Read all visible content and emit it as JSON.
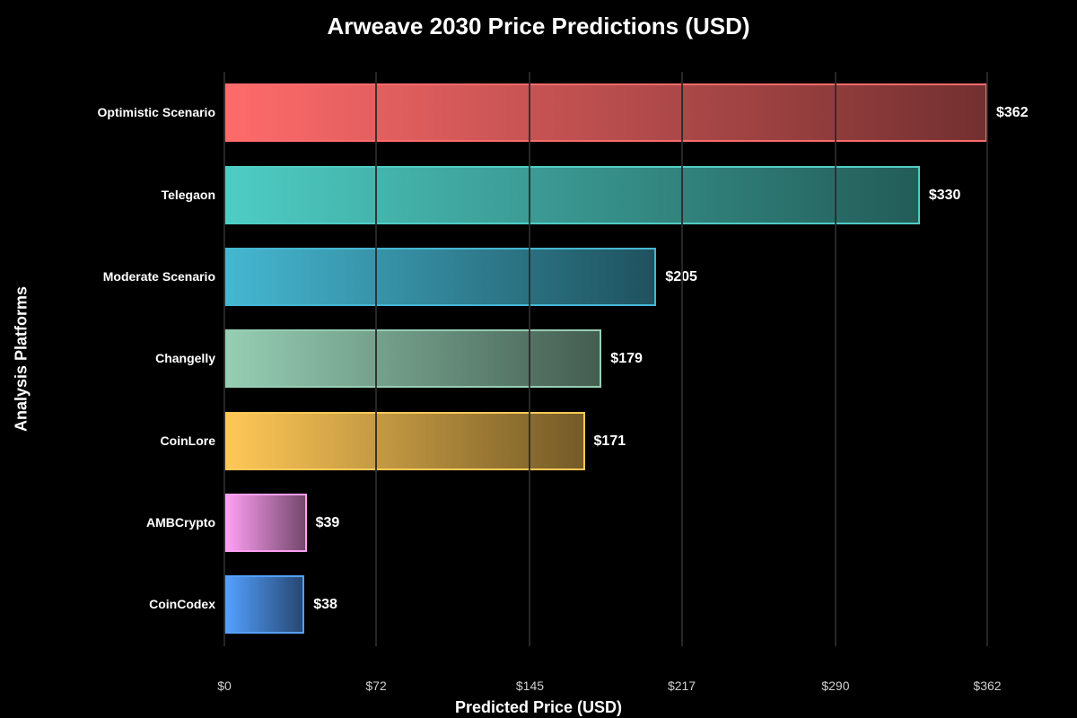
{
  "chart_data": {
    "type": "bar",
    "orientation": "horizontal",
    "title": "Arweave 2030 Price Predictions (USD)",
    "xlabel": "Predicted Price (USD)",
    "ylabel": "Analysis Platforms",
    "categories": [
      "Optimistic Scenario",
      "Telegaon",
      "Moderate Scenario",
      "Changelly",
      "CoinLore",
      "AMBCrypto",
      "CoinCodex"
    ],
    "values": [
      362,
      330,
      205,
      179,
      171,
      39,
      38
    ],
    "value_labels": [
      "$362",
      "$330",
      "$205",
      "$179",
      "$171",
      "$39",
      "$38"
    ],
    "colors": [
      "#FF6B6B",
      "#4ECDC4",
      "#45B7D1",
      "#96CEB4",
      "#FFC857",
      "#FF9FF3",
      "#54A0FF"
    ],
    "xlim": [
      0,
      362
    ],
    "xticks": [
      0,
      72,
      145,
      217,
      290,
      362
    ],
    "xtick_labels": [
      "$0",
      "$72",
      "$145",
      "$217",
      "$290",
      "$362"
    ],
    "grid": true,
    "legend": null
  }
}
